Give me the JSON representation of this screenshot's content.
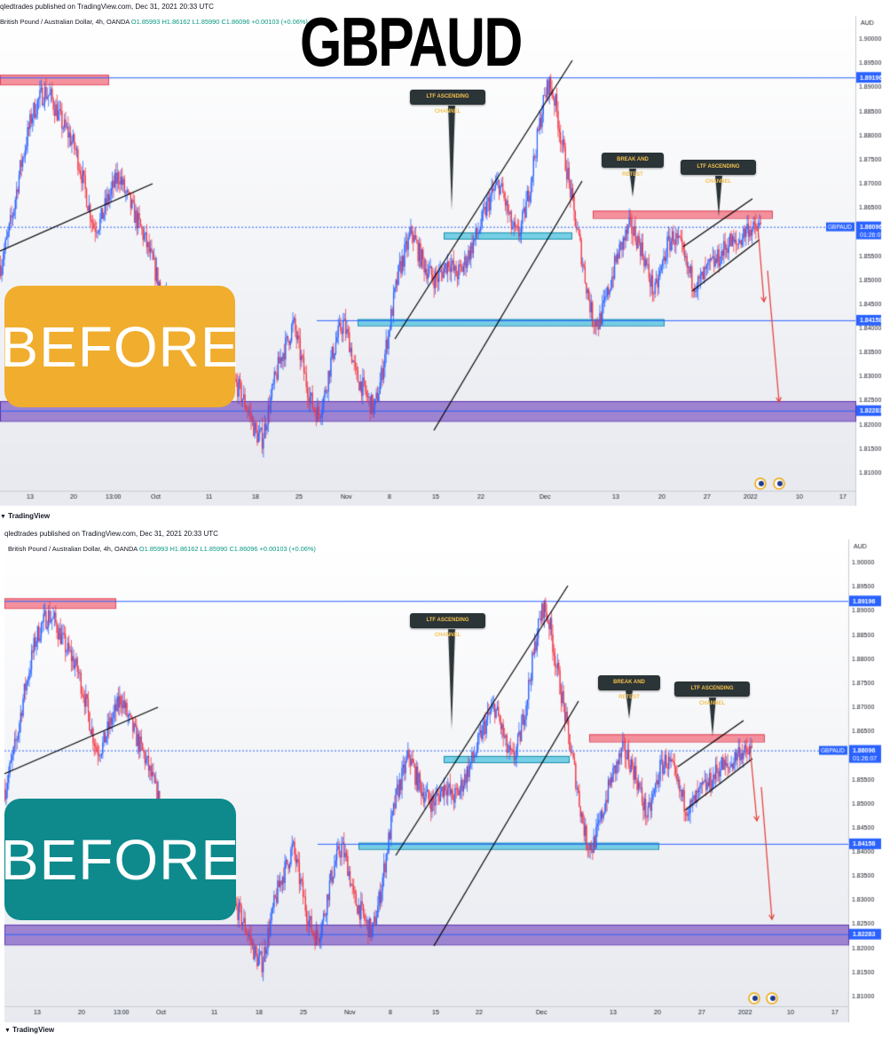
{
  "title": "GBPAUD",
  "colors": {
    "up": "#2962ff",
    "down": "#f23645",
    "top_label_bg": "#f0ad2e",
    "bottom_label_bg": "#0e8a8d",
    "supply_zone": "#f77b88",
    "cyan_zone": "#22b5d8",
    "purple_zone": "#7e57c2",
    "hline": "#2962ff"
  },
  "panels": [
    {
      "published": "qledtrades published on TradingView.com, Dec 31, 2021 20:33 UTC",
      "ohlc": {
        "symbol": "British Pound / Australian Dollar, 4h, OANDA",
        "open": "O1.85993",
        "high": "H1.86162",
        "low": "L1.85990",
        "close": "C1.86096",
        "change": "+0.00103 (+0.06%)"
      },
      "label_text": "BEFORE",
      "label_bg": "#f0ad2e",
      "footer": "TradingView"
    },
    {
      "published": "qledtrades published on TradingView.com, Dec 31, 2021 20:33 UTC",
      "ohlc": {
        "symbol": "British Pound / Australian Dollar, 4h, OANDA",
        "open": "O1.85993",
        "high": "H1.86162",
        "low": "L1.85990",
        "close": "C1.86096",
        "change": "+0.00103 (+0.06%)"
      },
      "label_text": "BEFORE",
      "label_bg": "#0e8a8d",
      "footer": "TradingView"
    }
  ],
  "annotations": {
    "channel1": "LTF ASCENDING CHANNEL",
    "retest": "BREAK AND RETEST",
    "channel2": "LTF ASCENDING CHANNEL"
  },
  "chart_data": {
    "type": "candlestick",
    "symbol": "GBPAUD",
    "timeframe": "4h",
    "currency": "AUD",
    "y_ticks": [
      1.9,
      1.895,
      1.89,
      1.885,
      1.88,
      1.875,
      1.87,
      1.865,
      1.86,
      1.855,
      1.85,
      1.845,
      1.84,
      1.835,
      1.83,
      1.825,
      1.82,
      1.815,
      1.81
    ],
    "ylim": [
      1.8075,
      1.9025
    ],
    "x_ticks": [
      "13",
      "20",
      "13:00",
      "Oct",
      "11",
      "18",
      "25",
      "Nov",
      "8",
      "15",
      "22",
      "Dec",
      "13",
      "20",
      "27",
      "2022",
      "10",
      "17"
    ],
    "levels": [
      {
        "label": "1.89196",
        "value": 1.89196
      },
      {
        "label": "1.84158",
        "value": 1.84158
      },
      {
        "label": "1.82283",
        "value": 1.82283
      }
    ],
    "current": {
      "symbol": "GBPAUD",
      "value": "1.86096",
      "countdown": "01:26:07"
    },
    "zones": [
      {
        "kind": "supply",
        "range": [
          1.8905,
          1.8925
        ]
      },
      {
        "kind": "retest-zone",
        "range": [
          1.8585,
          1.8598
        ]
      },
      {
        "kind": "break-zone",
        "range": [
          1.8405,
          1.8418
        ]
      },
      {
        "kind": "supply",
        "range": [
          1.8628,
          1.8643
        ]
      },
      {
        "kind": "demand",
        "range": [
          1.8207,
          1.8248
        ]
      }
    ],
    "price_path_close": [
      1.853,
      1.858,
      1.864,
      1.872,
      1.878,
      1.884,
      1.887,
      1.889,
      1.888,
      1.885,
      1.882,
      1.88,
      1.877,
      1.872,
      1.866,
      1.861,
      1.862,
      1.866,
      1.869,
      1.872,
      1.868,
      1.865,
      1.862,
      1.859,
      1.855,
      1.851,
      1.847,
      1.845,
      1.844,
      1.846,
      1.843,
      1.839,
      1.836,
      1.84,
      1.837,
      1.834,
      1.831,
      1.829,
      1.828,
      1.825,
      1.822,
      1.818,
      1.817,
      1.823,
      1.829,
      1.834,
      1.837,
      1.841,
      1.835,
      1.829,
      1.824,
      1.822,
      1.826,
      1.833,
      1.838,
      1.841,
      1.837,
      1.83,
      1.828,
      1.825,
      1.823,
      1.829,
      1.837,
      1.845,
      1.852,
      1.856,
      1.86,
      1.856,
      1.853,
      1.851,
      1.85,
      1.852,
      1.854,
      1.851,
      1.852,
      1.855,
      1.858,
      1.861,
      1.865,
      1.868,
      1.87,
      1.866,
      1.861,
      1.859,
      1.863,
      1.87,
      1.878,
      1.886,
      1.891,
      1.887,
      1.879,
      1.872,
      1.864,
      1.857,
      1.849,
      1.842,
      1.841,
      1.845,
      1.85,
      1.855,
      1.858,
      1.861,
      1.859,
      1.856,
      1.851,
      1.847,
      1.852,
      1.857,
      1.859,
      1.857,
      1.853,
      1.85,
      1.849,
      1.851,
      1.853,
      1.854,
      1.856,
      1.858,
      1.857,
      1.859,
      1.861,
      1.86,
      1.861
    ]
  }
}
